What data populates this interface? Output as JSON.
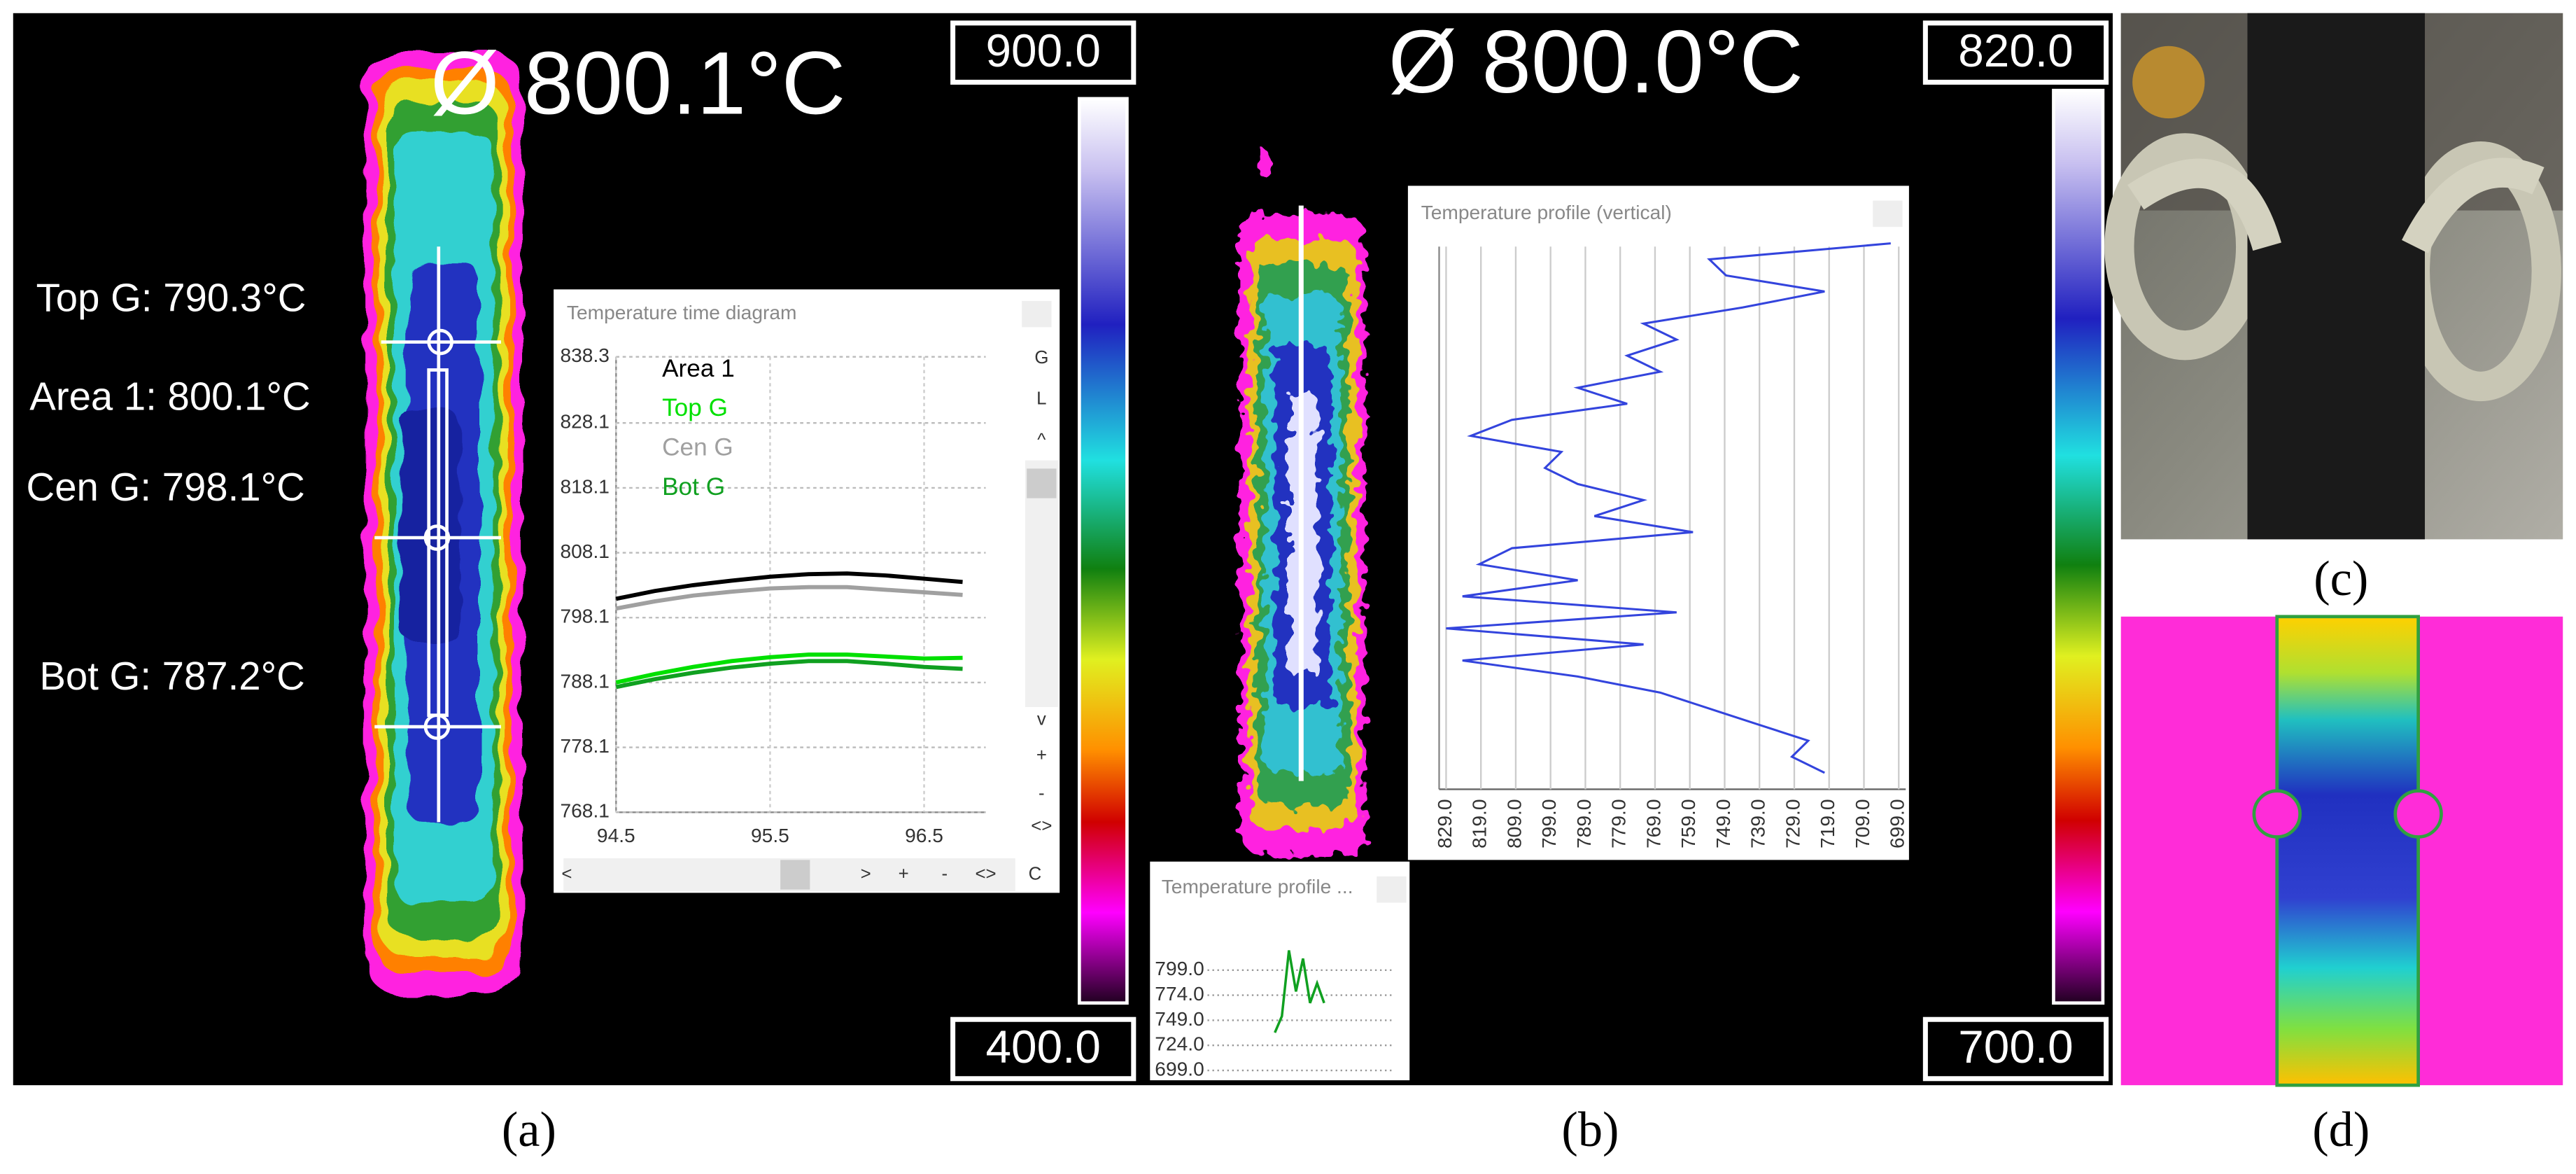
{
  "panel_a": {
    "caption": "(a)",
    "mean_temperature": "Ø 800.1°C",
    "scale_max": "900.0",
    "scale_min": "400.0",
    "measurements": [
      "Top G: 790.3°C",
      "Area 1: 800.1°C",
      "Cen G: 798.1°C",
      "Bot G: 787.2°C"
    ],
    "time_diagram": {
      "type": "line",
      "title": "Temperature time diagram",
      "x": [
        94.5,
        94.75,
        95.0,
        95.25,
        95.5,
        95.75,
        96.0,
        96.25,
        96.5,
        96.75
      ],
      "series": [
        {
          "name": "Area 1",
          "color": "#000000",
          "values": [
            801.0,
            802.2,
            803.1,
            803.8,
            804.4,
            804.8,
            804.9,
            804.6,
            804.1,
            803.6
          ]
        },
        {
          "name": "Top G",
          "color": "#00e000",
          "values": [
            788.1,
            789.4,
            790.5,
            791.4,
            792.0,
            792.4,
            792.4,
            792.1,
            791.8,
            791.9
          ]
        },
        {
          "name": "Cen G",
          "color": "#a0a0a0",
          "values": [
            799.5,
            800.6,
            801.5,
            802.1,
            802.6,
            802.8,
            802.8,
            802.4,
            802.0,
            801.6
          ]
        },
        {
          "name": "Bot G",
          "color": "#10a020",
          "values": [
            787.4,
            788.6,
            789.6,
            790.4,
            791.0,
            791.4,
            791.4,
            791.0,
            790.5,
            790.2
          ]
        }
      ],
      "xlim": [
        94.5,
        96.9
      ],
      "ylim": [
        768.1,
        838.3
      ],
      "xticks": [
        94.5,
        95.5,
        96.5
      ],
      "yticks": [
        838.3,
        828.1,
        818.1,
        808.1,
        798.1,
        788.1,
        778.1,
        768.1
      ],
      "grid": true,
      "toolbar_side": [
        "G",
        "L",
        "^",
        "v",
        "+",
        "-",
        "<>"
      ],
      "toolbar_bottom": [
        "<",
        ">",
        "+",
        "-",
        "<>",
        "C"
      ]
    }
  },
  "panel_b": {
    "caption": "(b)",
    "mean_temperature": "Ø 800.0°C",
    "scale_max": "820.0",
    "scale_min": "700.0",
    "profile_vertical": {
      "type": "line",
      "title": "Temperature profile (vertical)",
      "color": "#3344dd",
      "values": [
        701.3,
        753.4,
        748.6,
        720.3,
        743.9,
        772.3,
        762.8,
        777.0,
        767.5,
        791.2,
        777.0,
        810.1,
        821.9,
        795.9,
        800.6,
        791.2,
        772.3,
        786.4,
        758.1,
        810.1,
        819.5,
        791.2,
        824.3,
        762.8,
        829.0,
        772.3,
        824.3,
        791.2,
        767.5,
        753.4,
        739.2,
        725.0,
        729.7,
        720.3
      ],
      "xlim": [
        831.0,
        697.0
      ],
      "xticks": [
        {
          "value": 829,
          "label": "829.0"
        },
        {
          "value": 819,
          "label": "819.0"
        },
        {
          "value": 809,
          "label": "809.0"
        },
        {
          "value": 799,
          "label": "799.0"
        },
        {
          "value": 789,
          "label": "789.0"
        },
        {
          "value": 779,
          "label": "779.0"
        },
        {
          "value": 769,
          "label": "769.0"
        },
        {
          "value": 759,
          "label": "759.0"
        },
        {
          "value": 749,
          "label": "749.0"
        },
        {
          "value": 739,
          "label": "739.0"
        },
        {
          "value": 729,
          "label": "729.0"
        },
        {
          "value": 719,
          "label": "719.0"
        },
        {
          "value": 709,
          "label": "709.0"
        },
        {
          "value": 699,
          "label": "699.0"
        }
      ]
    },
    "profile_small": {
      "type": "line",
      "title": "Temperature profile ...",
      "color": "#10a020",
      "values": [
        736.7,
        753.1,
        818.7,
        777.7,
        810.5,
        766.2,
        785.9,
        766.2
      ],
      "ylim": [
        699.0,
        823.6
      ],
      "yticks": [
        {
          "value": 799,
          "label": "799.0"
        },
        {
          "value": 774,
          "label": "774.0"
        },
        {
          "value": 749,
          "label": "749.0"
        },
        {
          "value": 724,
          "label": "724.0"
        },
        {
          "value": 699,
          "label": "699.0"
        }
      ]
    }
  },
  "panel_c": {
    "caption": "(c)"
  },
  "panel_d": {
    "caption": "(d)"
  }
}
